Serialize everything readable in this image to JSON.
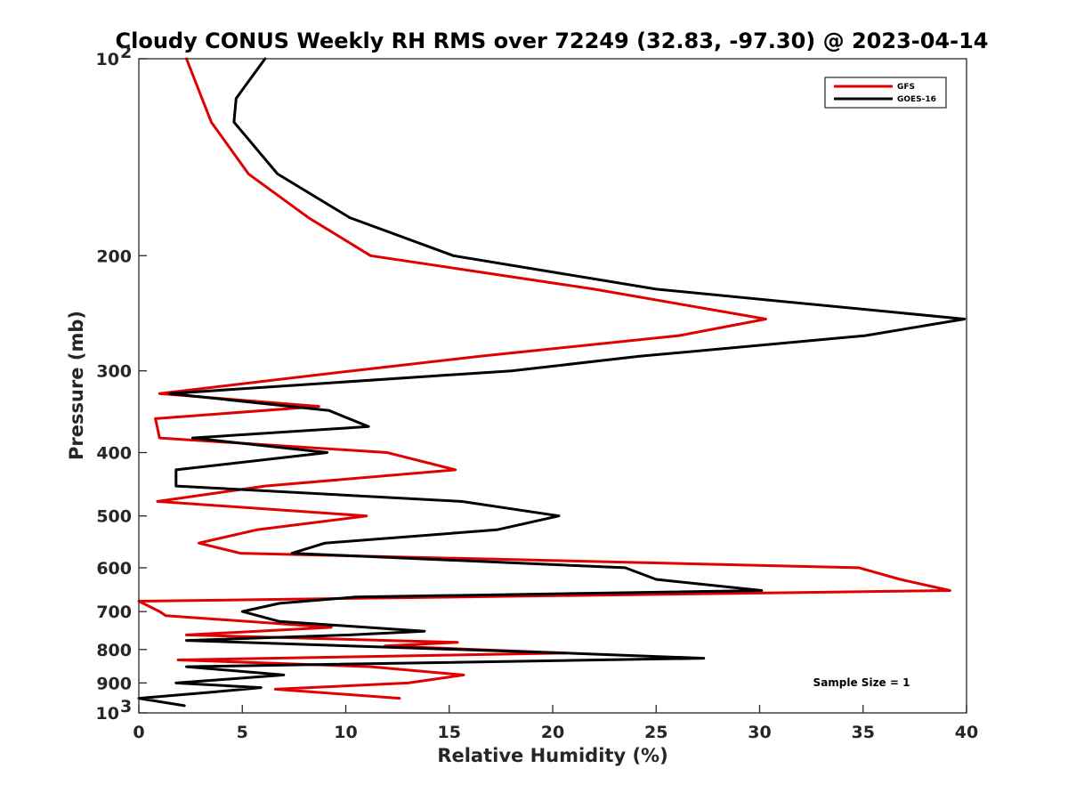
{
  "chart_data": {
    "type": "line",
    "title": "Cloudy CONUS Weekly RH RMS over 72249 (32.83, -97.30) @ 2023-04-14",
    "xlabel": "Relative Humidity (%)",
    "ylabel": "Pressure (mb)",
    "xlim": [
      0,
      40
    ],
    "ylim": [
      1000,
      100
    ],
    "yscale": "log",
    "y_reversed": true,
    "x_ticks": [
      "0",
      "5",
      "10",
      "15",
      "20",
      "25",
      "30",
      "35",
      "40"
    ],
    "y_ticks": [
      {
        "value": 100,
        "label": "10",
        "sup": "2"
      },
      {
        "value": 200,
        "label": "200",
        "sup": ""
      },
      {
        "value": 300,
        "label": "300",
        "sup": ""
      },
      {
        "value": 400,
        "label": "400",
        "sup": ""
      },
      {
        "value": 500,
        "label": "500",
        "sup": ""
      },
      {
        "value": 600,
        "label": "600",
        "sup": ""
      },
      {
        "value": 700,
        "label": "700",
        "sup": ""
      },
      {
        "value": 800,
        "label": "800",
        "sup": ""
      },
      {
        "value": 900,
        "label": "900",
        "sup": ""
      },
      {
        "value": 1000,
        "label": "10",
        "sup": "3"
      }
    ],
    "grid": false,
    "legend_position": "top-right",
    "annotation": "Sample Size = 1",
    "series": [
      {
        "name": "GFS",
        "color": "#e00000",
        "points": [
          [
            2.3,
            100
          ],
          [
            3.5,
            125
          ],
          [
            5.3,
            150
          ],
          [
            8.2,
            175
          ],
          [
            11.2,
            200
          ],
          [
            22,
            225
          ],
          [
            30.3,
            250
          ],
          [
            26.1,
            265
          ],
          [
            16.5,
            285
          ],
          [
            10.3,
            300
          ],
          [
            1.0,
            325
          ],
          [
            8.7,
            340
          ],
          [
            0.8,
            355
          ],
          [
            1.0,
            380
          ],
          [
            12.0,
            400
          ],
          [
            15.3,
            425
          ],
          [
            6.1,
            450
          ],
          [
            0.9,
            475
          ],
          [
            11.0,
            500
          ],
          [
            5.7,
            525
          ],
          [
            2.9,
            550
          ],
          [
            4.9,
            570
          ],
          [
            34.8,
            600
          ],
          [
            36.8,
            625
          ],
          [
            39.2,
            650
          ],
          [
            0.0,
            675
          ],
          [
            1.0,
            700
          ],
          [
            1.3,
            710
          ],
          [
            9.3,
            740
          ],
          [
            2.3,
            760
          ],
          [
            15.4,
            780
          ],
          [
            11.9,
            790
          ],
          [
            20.6,
            810
          ],
          [
            1.9,
            830
          ],
          [
            11.2,
            850
          ],
          [
            15.7,
            875
          ],
          [
            13.0,
            900
          ],
          [
            6.6,
            920
          ],
          [
            12.6,
            950
          ]
        ]
      },
      {
        "name": "GOES-16",
        "color": "#000000",
        "points": [
          [
            6.1,
            100
          ],
          [
            4.7,
            115
          ],
          [
            4.6,
            125
          ],
          [
            6.7,
            150
          ],
          [
            10.2,
            175
          ],
          [
            15.2,
            200
          ],
          [
            25.0,
            225
          ],
          [
            39.9,
            250
          ],
          [
            35.1,
            265
          ],
          [
            24.2,
            285
          ],
          [
            18.0,
            300
          ],
          [
            1.5,
            325
          ],
          [
            9.2,
            345
          ],
          [
            11.1,
            365
          ],
          [
            2.6,
            380
          ],
          [
            9.1,
            400
          ],
          [
            1.8,
            425
          ],
          [
            1.8,
            450
          ],
          [
            15.6,
            475
          ],
          [
            20.3,
            500
          ],
          [
            17.3,
            525
          ],
          [
            9.0,
            550
          ],
          [
            7.4,
            570
          ],
          [
            23.5,
            600
          ],
          [
            25.0,
            625
          ],
          [
            30.1,
            650
          ],
          [
            10.5,
            665
          ],
          [
            6.8,
            680
          ],
          [
            5.0,
            700
          ],
          [
            6.8,
            725
          ],
          [
            13.8,
            750
          ],
          [
            10.2,
            760
          ],
          [
            2.3,
            775
          ],
          [
            20.5,
            810
          ],
          [
            27.3,
            825
          ],
          [
            2.3,
            850
          ],
          [
            7.0,
            875
          ],
          [
            1.8,
            900
          ],
          [
            5.9,
            915
          ],
          [
            3.5,
            930
          ],
          [
            0.0,
            950
          ],
          [
            2.2,
            975
          ]
        ]
      }
    ]
  }
}
